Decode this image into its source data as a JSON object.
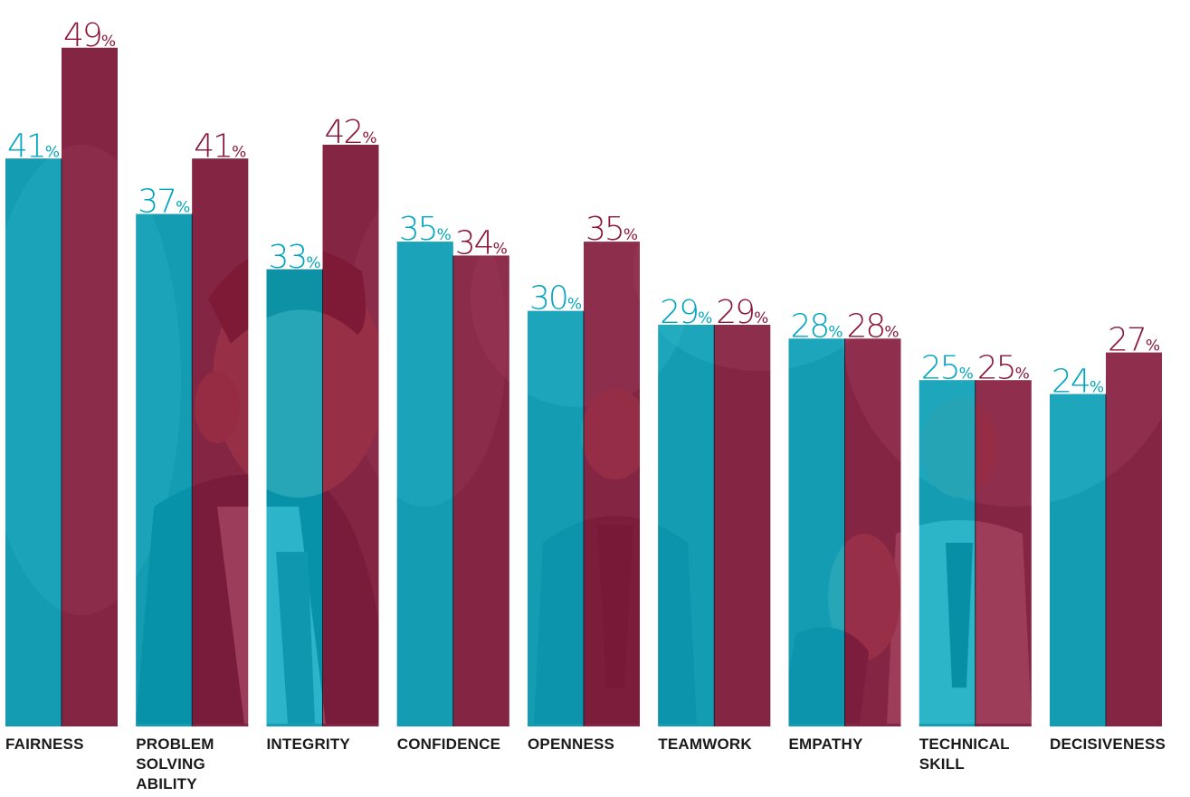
{
  "chart_data": {
    "type": "bar",
    "categories": [
      "FAIRNESS",
      "PROBLEM SOLVING ABILITY",
      "INTEGRITY",
      "CONFIDENCE",
      "OPENNESS",
      "TEAMWORK",
      "EMPATHY",
      "TECHNICAL SKILL",
      "DECISIVENESS"
    ],
    "category_lines": [
      [
        "FAIRNESS"
      ],
      [
        "PROBLEM",
        "SOLVING",
        "ABILITY"
      ],
      [
        "INTEGRITY"
      ],
      [
        "CONFIDENCE"
      ],
      [
        "OPENNESS"
      ],
      [
        "TEAMWORK"
      ],
      [
        "EMPATHY"
      ],
      [
        "TECHNICAL",
        "SKILL"
      ],
      [
        "DECISIVENESS"
      ]
    ],
    "series": [
      {
        "values": [
          41,
          37,
          33,
          35,
          30,
          29,
          28,
          25,
          24
        ],
        "color": "#00a6bf"
      },
      {
        "values": [
          49,
          41,
          42,
          34,
          35,
          29,
          28,
          25,
          27
        ],
        "color": "#8a1538"
      }
    ],
    "value_suffix": "%",
    "ylim": [
      0,
      49
    ],
    "grid": false,
    "legend": "none",
    "background": "photo of smiling businessman behind bars"
  }
}
